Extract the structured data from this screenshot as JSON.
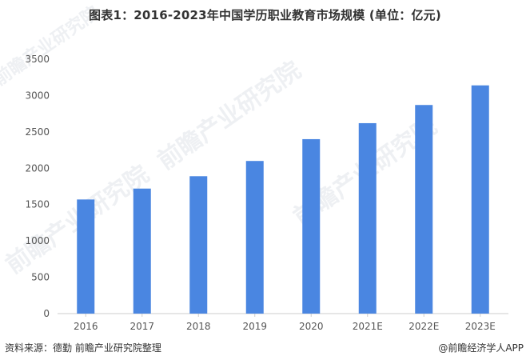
{
  "title": "图表1：2016-2023年中国学历职业教育市场规模 (单位：亿元)",
  "source": "资料来源：德勤 前瞻产业研究院整理",
  "credit": "@前瞻经济学人APP",
  "watermark": "前瞻产业研究院",
  "colors": {
    "bar": "#4a86e1",
    "axis": "#cccccc",
    "text": "#555555"
  },
  "chart_data": {
    "type": "bar",
    "categories": [
      "2016",
      "2017",
      "2018",
      "2019",
      "2020",
      "2021E",
      "2022E",
      "2023E"
    ],
    "values": [
      1570,
      1720,
      1890,
      2100,
      2400,
      2620,
      2870,
      3140
    ],
    "ylim": [
      0,
      3500
    ],
    "yticks": [
      0,
      500,
      1000,
      1500,
      2000,
      2500,
      3000,
      3500
    ],
    "title": "图表1：2016-2023年中国学历职业教育市场规模 (单位：亿元)",
    "xlabel": "",
    "ylabel": "",
    "grid": false,
    "legend": "none"
  }
}
